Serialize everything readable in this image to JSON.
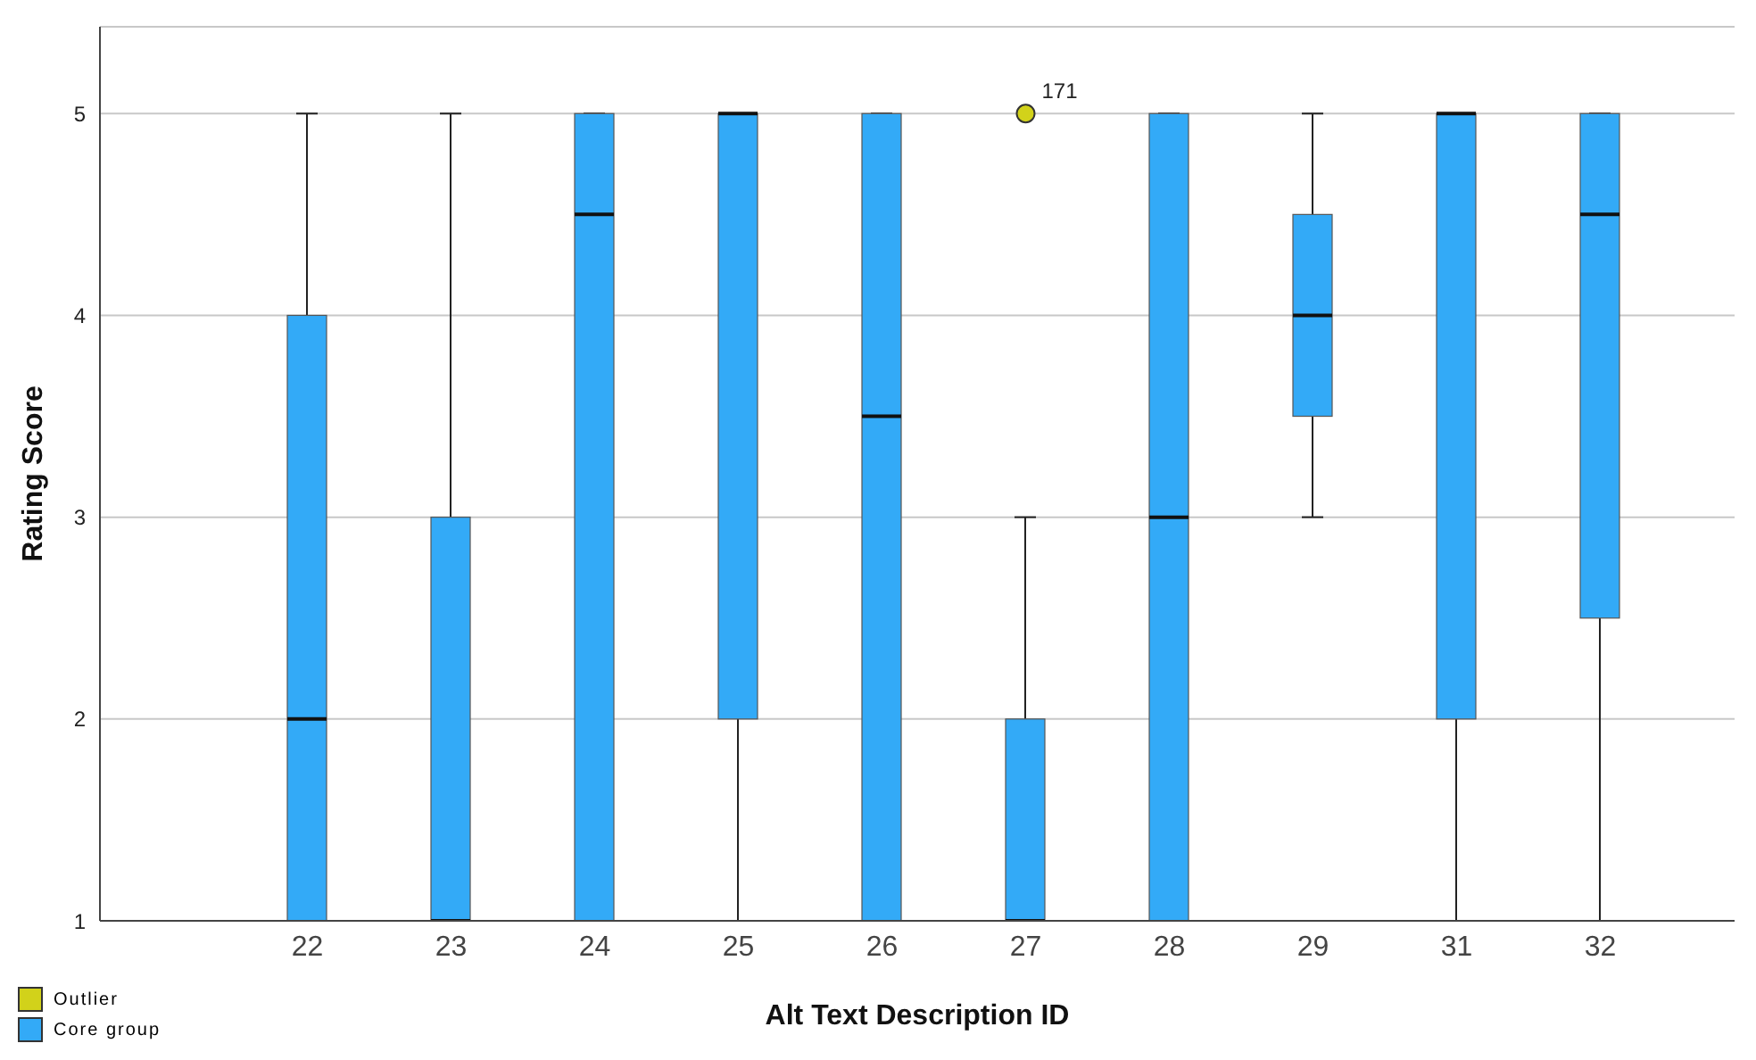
{
  "chart_data": {
    "type": "box",
    "xlabel": "Alt Text Description ID",
    "ylabel": "Rating Score",
    "categories": [
      "22",
      "23",
      "24",
      "25",
      "26",
      "27",
      "28",
      "29",
      "31",
      "32"
    ],
    "series": [
      {
        "name": "Outlier",
        "type": "scatter",
        "color": "#d2d21a",
        "x": [
          "27"
        ],
        "values": [
          5
        ],
        "marker": "circle"
      },
      {
        "name": "Core group",
        "color": "#33aaf7",
        "boxes": [
          {
            "low": 1,
            "q1": 1,
            "median": 2,
            "q3": 4,
            "high": 5
          },
          {
            "low": 1,
            "q1": 1,
            "median": 1,
            "q3": 3,
            "high": 5
          },
          {
            "low": 1,
            "q1": 1,
            "median": 4.5,
            "q3": 5,
            "high": 5
          },
          {
            "low": 1,
            "q1": 2,
            "median": 5,
            "q3": 5,
            "high": 5
          },
          {
            "low": 1,
            "q1": 1,
            "median": 3.5,
            "q3": 5,
            "high": 5
          },
          {
            "low": 1,
            "q1": 1,
            "median": 1,
            "q3": 2,
            "high": 3
          },
          {
            "low": 1,
            "q1": 1,
            "median": 3,
            "q3": 5,
            "high": 5
          },
          {
            "low": 3,
            "q1": 3.5,
            "median": 4,
            "q3": 4.5,
            "high": 5
          },
          {
            "low": 1,
            "q1": 2,
            "median": 5,
            "q3": 5,
            "high": 5
          },
          {
            "low": 1,
            "q1": 2.5,
            "median": 4.5,
            "q3": 5,
            "high": 5
          }
        ]
      }
    ],
    "annotations": [
      {
        "text": "171",
        "x": "27",
        "y": 5
      }
    ],
    "ylim": [
      1,
      5.43
    ],
    "yticks": [
      1,
      2,
      3,
      4,
      5
    ],
    "grid": "y",
    "legend": "bottom left"
  }
}
